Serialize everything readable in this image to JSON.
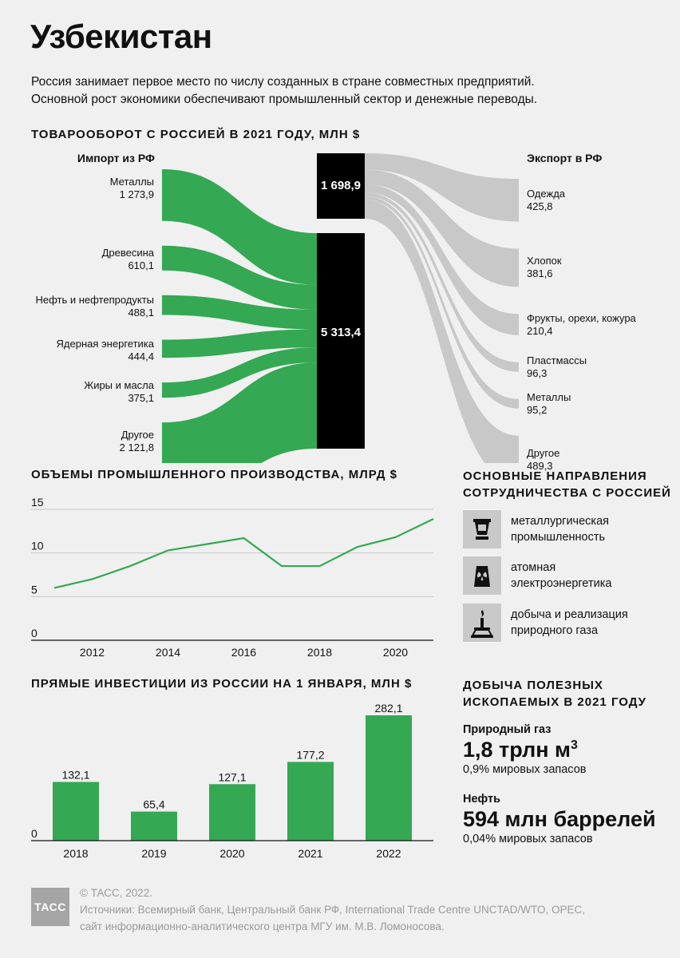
{
  "title": "Узбекистан",
  "intro": {
    "line1": "Россия занимает первое место по числу созданных в стране совместных предприятий.",
    "line2": "Основной рост экономики обеспечивают промышленный сектор и денежные переводы."
  },
  "sections": {
    "trade": "ТОВАРООБОРОТ С РОССИЕЙ В 2021 ГОДУ, МЛН $",
    "industry": "ОБЪЕМЫ ПРОМЫШЛЕННОГО ПРОИЗВОДСТВА, МЛРД $",
    "invest": "ПРЯМЫЕ ИНВЕСТИЦИИ ИЗ РОССИИ НА 1 ЯНВАРЯ, МЛН $",
    "directions_1": "ОСНОВНЫЕ НАПРАВЛЕНИЯ",
    "directions_2": "СОТРУДНИЧЕСТВА С РОССИЕЙ",
    "mining_1": "ДОБЫЧА ПОЛЕЗНЫХ",
    "mining_2": "ИСКОПАЕМЫХ В 2021 ГОДУ"
  },
  "chart_data": [
    {
      "type": "sankey",
      "import_header": "Импорт из РФ",
      "export_header": "Экспорт в РФ",
      "import_total_label": "5 313,4",
      "export_total_label": "1 698,9",
      "imports": [
        {
          "name": "Металлы",
          "value_label": "1 273,9",
          "value": 1273.9
        },
        {
          "name": "Древесина",
          "value_label": "610,1",
          "value": 610.1
        },
        {
          "name": "Нефть и нефтепродукты",
          "value_label": "488,1",
          "value": 488.1
        },
        {
          "name": "Ядерная энергетика",
          "value_label": "444,4",
          "value": 444.4
        },
        {
          "name": "Жиры и масла",
          "value_label": "375,1",
          "value": 375.1
        },
        {
          "name": "Другое",
          "value_label": "2 121,8",
          "value": 2121.8
        }
      ],
      "exports": [
        {
          "name": "Одежда",
          "value_label": "425,8",
          "value": 425.8
        },
        {
          "name": "Хлопок",
          "value_label": "381,6",
          "value": 381.6
        },
        {
          "name": "Фрукты, орехи, кожура",
          "value_label": "210,4",
          "value": 210.4
        },
        {
          "name": "Пластмассы",
          "value_label": "96,3",
          "value": 96.3
        },
        {
          "name": "Металлы",
          "value_label": "95,2",
          "value": 95.2
        },
        {
          "name": "Другое",
          "value_label": "489,3",
          "value": 489.3
        }
      ]
    },
    {
      "type": "line",
      "x": [
        2011,
        2012,
        2013,
        2014,
        2015,
        2016,
        2017,
        2018,
        2019,
        2020,
        2021
      ],
      "values": [
        6.0,
        7.0,
        8.5,
        10.3,
        11.0,
        11.7,
        8.5,
        8.5,
        10.7,
        11.8,
        13.9
      ],
      "ylim": [
        0,
        15
      ],
      "yticks": [
        "15",
        "10",
        "5",
        "0"
      ],
      "ytick_values": [
        15,
        10,
        5,
        0
      ],
      "xticks": [
        "2012",
        "2014",
        "2016",
        "2018",
        "2020"
      ],
      "xtick_values": [
        2012,
        2014,
        2016,
        2018,
        2020
      ],
      "grid": true,
      "color": "#34a853"
    },
    {
      "type": "bar",
      "categories": [
        "2018",
        "2019",
        "2020",
        "2021",
        "2022"
      ],
      "values": [
        132.1,
        65.4,
        127.1,
        177.2,
        282.1
      ],
      "value_labels": [
        "132,1",
        "65,4",
        "127,1",
        "177,2",
        "282,1"
      ],
      "zero_label": "0",
      "color": "#34a853"
    }
  ],
  "directions": [
    {
      "icon": "crucible-icon",
      "line1": "металлургическая",
      "line2": "промышленность"
    },
    {
      "icon": "nuclear-plant-icon",
      "line1": "атомная",
      "line2": "электроэнергетика"
    },
    {
      "icon": "gas-rig-icon",
      "line1": "добыча и реализация",
      "line2": "природного газа"
    }
  ],
  "mining": [
    {
      "name": "Природный газ",
      "value": "1,8 трлн м",
      "sup": "3",
      "sub": "0,9% мировых запасов"
    },
    {
      "name": "Нефть",
      "value": "594 млн баррелей",
      "sup": "",
      "sub": "0,04% мировых запасов"
    }
  ],
  "footer": {
    "logo": "ТАСС",
    "copyright": "© ТАСС, 2022.",
    "sources1": "Источники: Всемирный банк, Центральный банк РФ, International Trade Centre UNCTAD/WTO, OPEC,",
    "sources2": "сайт информационно-аналитического центра МГУ им. М.В. Ломоносова."
  },
  "colors": {
    "green": "#34a853",
    "grey": "#c8c8c8",
    "black": "#000000"
  }
}
